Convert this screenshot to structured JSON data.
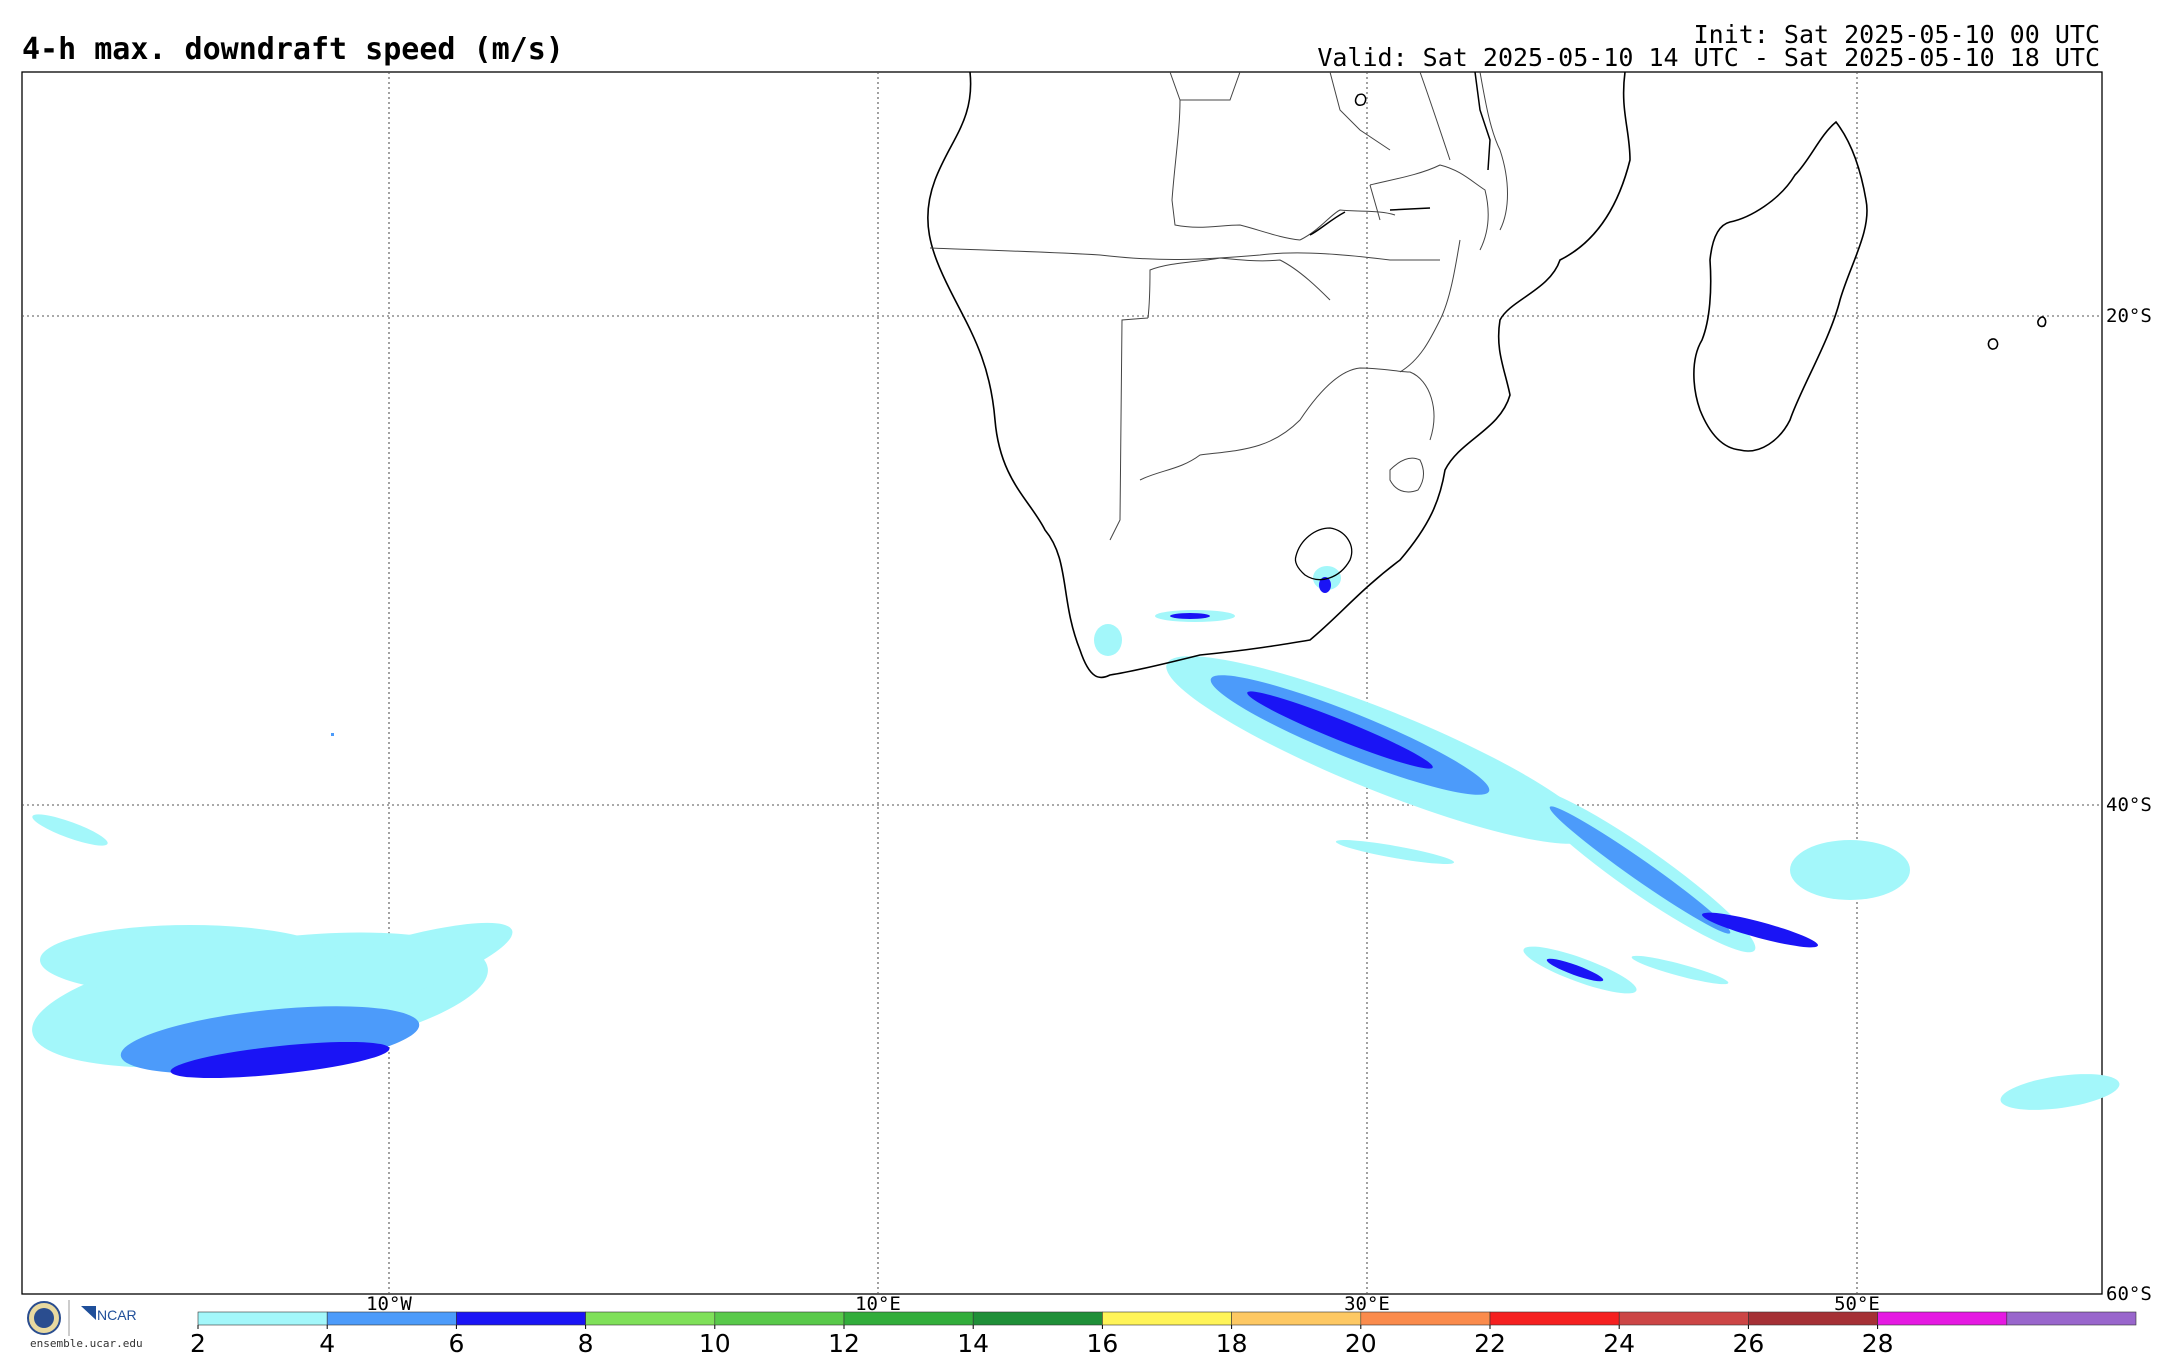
{
  "title": "4-h max. downdraft speed (m/s)",
  "init": "Init: Sat 2025-05-10 00 UTC",
  "valid": "Valid: Sat 2025-05-10 14 UTC - Sat 2025-05-10 18 UTC",
  "lon_labels": [
    "10°W",
    "10°E",
    "30°E",
    "50°E"
  ],
  "lat_labels": [
    "20°S",
    "40°S",
    "60°S"
  ],
  "colorbar": {
    "ticks": [
      "2",
      "4",
      "6",
      "8",
      "10",
      "12",
      "14",
      "16",
      "18",
      "20",
      "22",
      "24",
      "26",
      "28"
    ],
    "colors": [
      "#a3f7fa",
      "#4c9bfa",
      "#1a14f5",
      "#7fe059",
      "#59c94a",
      "#32ad3b",
      "#1f8f38",
      "#fff458",
      "#fdc863",
      "#fa8b4c",
      "#f52020",
      "#cc4545",
      "#a53035",
      "#e519e2",
      "#9966cc"
    ],
    "tick_indices": [
      0,
      1,
      2,
      3,
      4,
      5,
      6,
      7,
      8,
      9,
      10,
      11,
      12,
      13,
      14
    ]
  },
  "logo": {
    "org": "NCAR",
    "site": "ensemble.ucar.edu"
  }
}
